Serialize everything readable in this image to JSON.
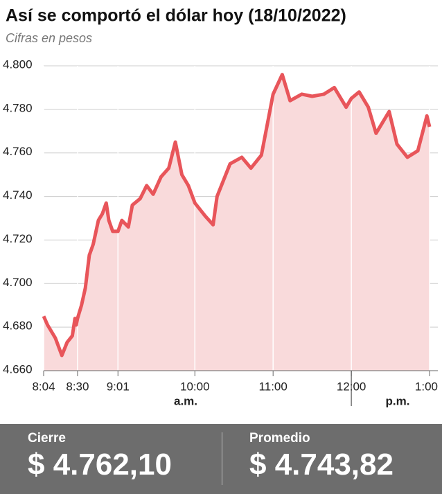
{
  "chart_data": {
    "type": "area-line",
    "title": "Así se comportó el dólar hoy (18/10/2022)",
    "subtitle": "Cifras en pesos",
    "color": "#e8555a",
    "fill": "#f9dadb",
    "x": [
      "8:04",
      "8:07",
      "8:13",
      "8:18",
      "8:22",
      "8:26",
      "8:28",
      "8:29",
      "8:30",
      "8:33",
      "8:36",
      "8:39",
      "8:42",
      "8:46",
      "8:49",
      "8:52",
      "8:54",
      "8:57",
      "9:01",
      "9:04",
      "9:09",
      "9:12",
      "9:18",
      "9:23",
      "9:28",
      "9:34",
      "9:40",
      "9:45",
      "9:50",
      "9:55",
      "10:00",
      "10:08",
      "10:14",
      "10:17",
      "10:27",
      "10:36",
      "10:43",
      "10:51",
      "11:00",
      "11:07",
      "11:13",
      "11:22",
      "11:30",
      "11:39",
      "11:47",
      "11:56",
      "12:00",
      "12:06",
      "12:13",
      "12:19",
      "12:29",
      "12:35",
      "12:43",
      "12:51",
      "12:58",
      "1:00"
    ],
    "values": [
      4685,
      4681,
      4675,
      4667,
      4673,
      4676,
      4684,
      4681,
      4684,
      4690,
      4698,
      4713,
      4718,
      4729,
      4732,
      4737,
      4729,
      4724,
      4724,
      4729,
      4726,
      4736,
      4739,
      4745,
      4741,
      4749,
      4753,
      4765,
      4750,
      4745,
      4737,
      4731,
      4727,
      4740,
      4755,
      4758,
      4753,
      4759,
      4787,
      4796,
      4784,
      4787,
      4786,
      4787,
      4790,
      4781,
      4785,
      4788,
      4781,
      4769,
      4779,
      4764,
      4758,
      4761,
      4777,
      4772
    ],
    "xlim": [
      "8:04",
      "1:00"
    ],
    "xticks": [
      "8:04",
      "8:30",
      "9:01",
      "10:00",
      "11:00",
      "12:00",
      "1:00"
    ],
    "ylim": [
      4660,
      4800
    ],
    "yticks": [
      {
        "value": 4660,
        "label": "4.660"
      },
      {
        "value": 4680,
        "label": "4.680"
      },
      {
        "value": 4700,
        "label": "4.700"
      },
      {
        "value": 4720,
        "label": "4.720"
      },
      {
        "value": 4740,
        "label": "4.740"
      },
      {
        "value": 4760,
        "label": "4.760"
      },
      {
        "value": 4780,
        "label": "4.780"
      },
      {
        "value": 4800,
        "label": "4.800"
      }
    ],
    "grid": true,
    "annotations": [
      "a.m.",
      "p.m."
    ]
  },
  "summary": [
    {
      "label": "Cierre",
      "value": "$ 4.762,10"
    },
    {
      "label": "Promedio",
      "value": "$ 4.743,82"
    }
  ]
}
